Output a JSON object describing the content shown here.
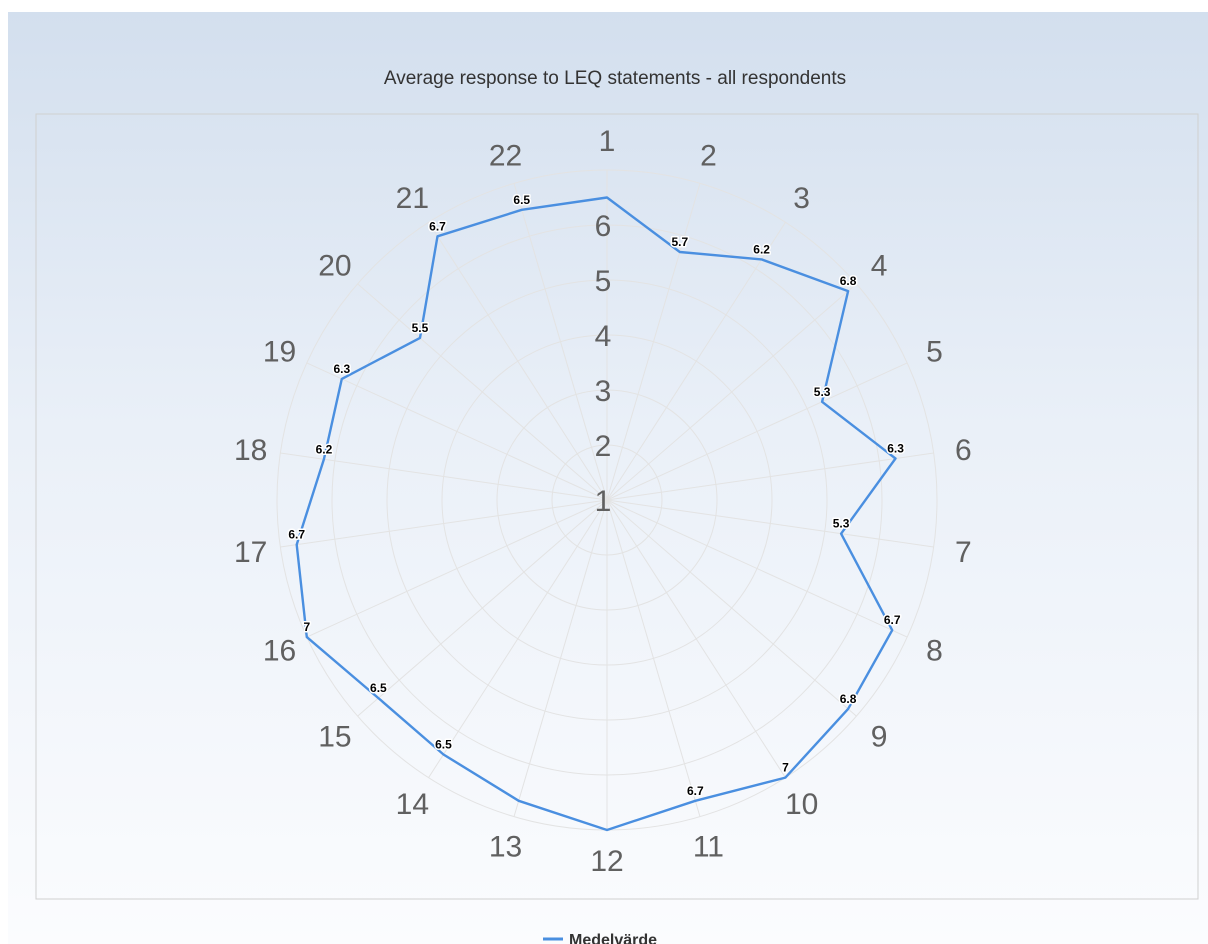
{
  "chart_data": {
    "type": "radar",
    "title": "Average response to LEQ statements - all respondents",
    "categories": [
      "1",
      "2",
      "3",
      "4",
      "5",
      "6",
      "7",
      "8",
      "9",
      "10",
      "11",
      "12",
      "13",
      "14",
      "15",
      "16",
      "17",
      "18",
      "19",
      "20",
      "21",
      "22"
    ],
    "series": [
      {
        "name": "Medelvärde",
        "values": [
          6.5,
          5.7,
          6.2,
          6.8,
          5.3,
          6.3,
          5.3,
          6.7,
          6.8,
          7,
          6.7,
          7,
          6.7,
          6.5,
          6.5,
          7,
          6.7,
          6.2,
          6.3,
          5.5,
          6.7,
          6.5
        ],
        "labels": [
          "",
          "5.7",
          "6.2",
          "6.8",
          "5.3",
          "6.3",
          "5.3",
          "6.7",
          "6.8",
          "7",
          "6.7",
          "",
          "",
          "6.5",
          "6.5",
          "7",
          "6.7",
          "6.2",
          "6.3",
          "5.5",
          "6.7",
          "6.5"
        ]
      }
    ],
    "radial_ticks": [
      "1",
      "2",
      "3",
      "4",
      "5",
      "6"
    ],
    "rmin": 1,
    "rmax": 7,
    "gridlines": true,
    "legend_position": "bottom-center",
    "series_color": "#4a8fe0"
  }
}
